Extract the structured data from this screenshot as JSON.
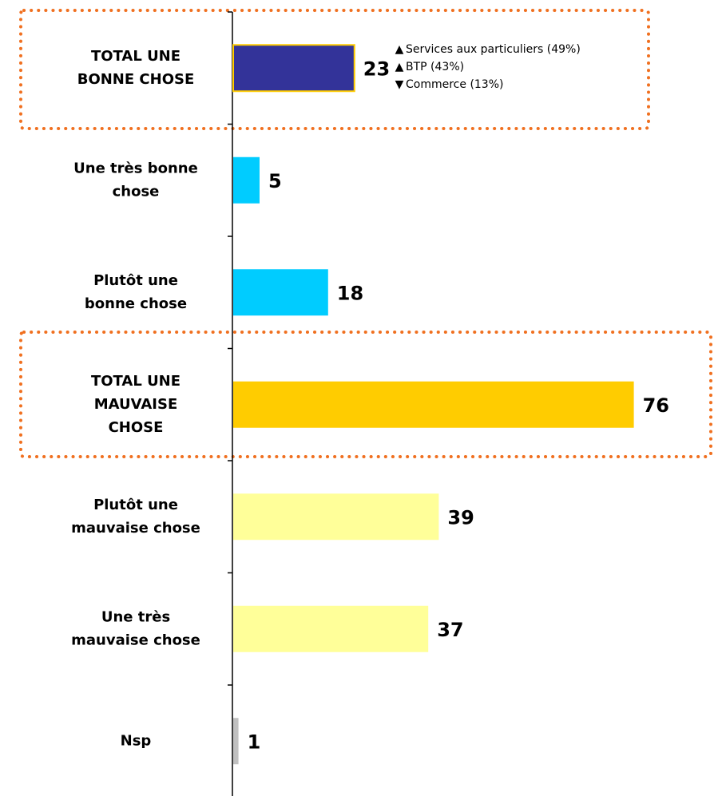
{
  "chart_data": {
    "type": "bar",
    "orientation": "horizontal",
    "categories": [
      [
        "TOTAL UNE",
        "BONNE CHOSE"
      ],
      [
        "Une très bonne",
        "chose"
      ],
      [
        "Plutôt une",
        "bonne chose"
      ],
      [
        "TOTAL UNE",
        "MAUVAISE",
        "CHOSE"
      ],
      [
        "Plutôt une",
        "mauvaise chose"
      ],
      [
        "Une très",
        "mauvaise chose"
      ],
      [
        "Nsp"
      ]
    ],
    "values": [
      23,
      5,
      18,
      76,
      39,
      37,
      1
    ],
    "colors": [
      "#333399",
      "#00ccff",
      "#00ccff",
      "#ffcc00",
      "#ffff99",
      "#ffff99",
      "#c0c0c0"
    ],
    "annotations": [
      {
        "marker": "▲",
        "text": "Services aux particuliers (49%)"
      },
      {
        "marker": "▲",
        "text": "BTP (43%)"
      },
      {
        "marker": "▼",
        "text": "Commerce (13%)"
      }
    ]
  }
}
